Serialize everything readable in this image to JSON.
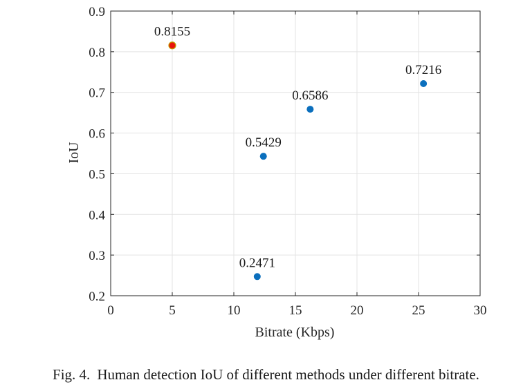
{
  "caption": {
    "label": "Fig. 4.",
    "text": "Human detection IoU of different methods under different bitrate."
  },
  "chart_data": {
    "type": "scatter",
    "title": "",
    "xlabel": "Bitrate (Kbps)",
    "ylabel": "IoU",
    "xlim": [
      0,
      30
    ],
    "ylim": [
      0.2,
      0.9
    ],
    "xticks": [
      0,
      5,
      10,
      15,
      20,
      25,
      30
    ],
    "yticks": [
      0.2,
      0.3,
      0.4,
      0.5,
      0.6,
      0.7,
      0.8,
      0.9
    ],
    "xtick_labels": [
      "0",
      "5",
      "10",
      "15",
      "20",
      "25",
      "30"
    ],
    "ytick_labels": [
      "0.2",
      "0.3",
      "0.4",
      "0.5",
      "0.6",
      "0.7",
      "0.8",
      "0.9"
    ],
    "grid": true,
    "points": [
      {
        "x": 5.0,
        "y": 0.8155,
        "label": "0.8155",
        "color": "#e8150c",
        "edge": "#c0a000"
      },
      {
        "x": 11.9,
        "y": 0.2471,
        "label": "0.2471",
        "color": "#0b6fbd"
      },
      {
        "x": 12.4,
        "y": 0.5429,
        "label": "0.5429",
        "color": "#0b6fbd"
      },
      {
        "x": 16.2,
        "y": 0.6586,
        "label": "0.6586",
        "color": "#0b6fbd"
      },
      {
        "x": 25.4,
        "y": 0.7216,
        "label": "0.7216",
        "color": "#0b6fbd"
      }
    ]
  }
}
